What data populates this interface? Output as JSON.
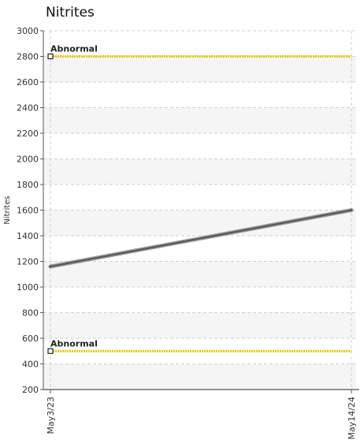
{
  "chart_data": {
    "type": "line",
    "title": "Nitrites",
    "ylabel": "Nitrites",
    "xlabel": "",
    "ylim": [
      200,
      3000
    ],
    "yticks": [
      200,
      400,
      600,
      800,
      1000,
      1200,
      1400,
      1600,
      1800,
      2000,
      2200,
      2400,
      2600,
      2800,
      3000
    ],
    "categories": [
      "May3/23",
      "May14/24"
    ],
    "series": [
      {
        "values": [
          1160,
          1600
        ],
        "color": "#555555"
      }
    ],
    "reference_lines": [
      {
        "label": "Abnormal",
        "value": 2800,
        "color": "#f2c200"
      },
      {
        "label": "Abnormal",
        "value": 500,
        "color": "#f2c200"
      }
    ],
    "grid": true,
    "background_bands": true
  }
}
